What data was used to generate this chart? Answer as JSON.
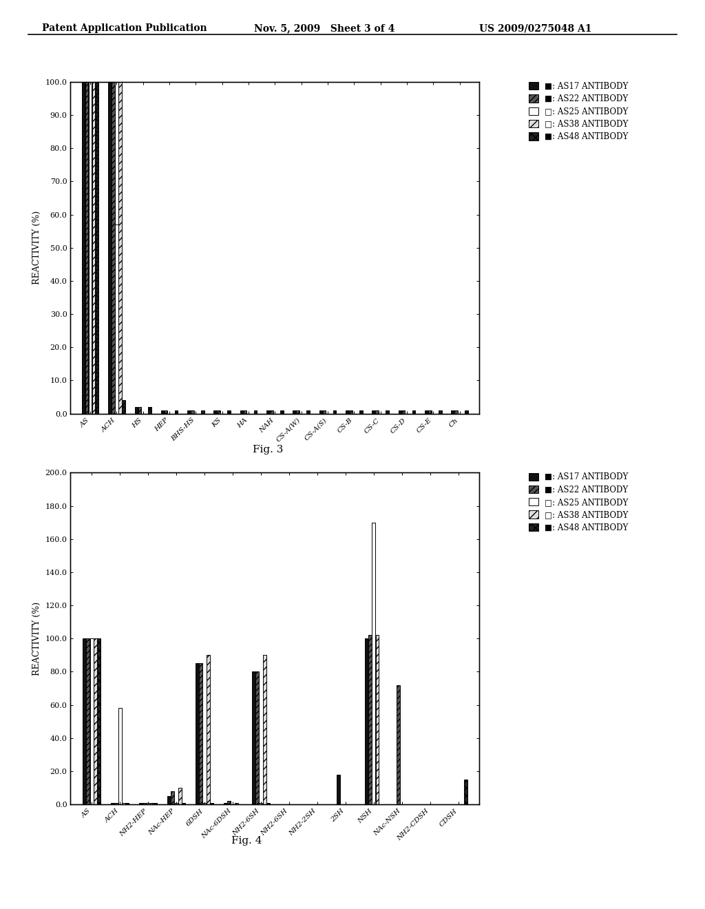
{
  "header_left": "Patent Application Publication",
  "header_mid": "Nov. 5, 2009   Sheet 3 of 4",
  "header_right": "US 2009/0275048 A1",
  "fig3": {
    "title": "Fig. 3",
    "ylabel": "REACTIVITY (%)",
    "ylim": [
      0,
      100
    ],
    "yticks": [
      0.0,
      10.0,
      20.0,
      30.0,
      40.0,
      50.0,
      60.0,
      70.0,
      80.0,
      90.0,
      100.0
    ],
    "categories": [
      "AS",
      "ACH",
      "HS",
      "HEP",
      "BHS-HS",
      "KS",
      "HA",
      "NAH",
      "CS-A(W)",
      "CS-A(S)",
      "CS-B",
      "CS-C",
      "CS-D",
      "CS-E",
      "Ch"
    ],
    "series": [
      {
        "name": "AS17 ANTIBODY",
        "color": "#111111",
        "hatch": "",
        "values": [
          100,
          100,
          2,
          1,
          1,
          1,
          1,
          1,
          1,
          1,
          1,
          1,
          1,
          1,
          1
        ]
      },
      {
        "name": "AS22 ANTIBODY",
        "color": "#555555",
        "hatch": "////",
        "values": [
          100,
          100,
          2,
          1,
          1,
          1,
          1,
          1,
          1,
          1,
          1,
          1,
          1,
          1,
          1
        ]
      },
      {
        "name": "AS25 ANTIBODY",
        "color": "#ffffff",
        "hatch": "",
        "values": [
          100,
          57,
          0,
          0,
          0,
          0,
          0,
          0,
          0,
          0,
          0,
          0,
          0,
          0,
          0
        ]
      },
      {
        "name": "AS38 ANTIBODY",
        "color": "#dddddd",
        "hatch": "///",
        "values": [
          100,
          100,
          0,
          0,
          0,
          0,
          0,
          0,
          0,
          0,
          0,
          0,
          0,
          0,
          0
        ]
      },
      {
        "name": "AS48 ANTIBODY",
        "color": "#222222",
        "hatch": "xxx",
        "values": [
          100,
          4,
          2,
          1,
          1,
          1,
          1,
          1,
          1,
          1,
          1,
          1,
          1,
          1,
          1
        ]
      }
    ]
  },
  "fig4": {
    "title": "Fig. 4",
    "ylabel": "REACTIVITY (%)",
    "ylim": [
      0,
      200
    ],
    "yticks": [
      0.0,
      20.0,
      40.0,
      60.0,
      80.0,
      100.0,
      120.0,
      140.0,
      160.0,
      180.0,
      200.0
    ],
    "categories": [
      "AS",
      "ACH",
      "NH2-HEP",
      "NAc-HEP",
      "6DSH",
      "NAc-6DSH",
      "NH2-6SH",
      "NH2-6SH",
      "NH2-2SH",
      "2SH",
      "NSH",
      "NAc-NSH",
      "NH2-CDSH",
      "CDSH"
    ],
    "series": [
      {
        "name": "AS17 ANTIBODY",
        "color": "#111111",
        "hatch": "",
        "values": [
          100,
          1,
          1,
          5,
          85,
          1,
          80,
          0,
          0,
          18,
          100,
          0,
          0,
          0
        ]
      },
      {
        "name": "AS22 ANTIBODY",
        "color": "#555555",
        "hatch": "////",
        "values": [
          100,
          1,
          1,
          8,
          85,
          2,
          80,
          0,
          0,
          0,
          102,
          72,
          0,
          0
        ]
      },
      {
        "name": "AS25 ANTIBODY",
        "color": "#ffffff",
        "hatch": "",
        "values": [
          100,
          58,
          1,
          1,
          1,
          0,
          1,
          0,
          0,
          0,
          170,
          0,
          0,
          0
        ]
      },
      {
        "name": "AS38 ANTIBODY",
        "color": "#dddddd",
        "hatch": "///",
        "values": [
          100,
          1,
          1,
          10,
          90,
          1,
          90,
          0,
          0,
          0,
          102,
          0,
          0,
          0
        ]
      },
      {
        "name": "AS48 ANTIBODY",
        "color": "#222222",
        "hatch": "xxx",
        "values": [
          100,
          1,
          1,
          1,
          1,
          0,
          1,
          0,
          0,
          0,
          0,
          0,
          0,
          15
        ]
      }
    ]
  },
  "legend_symbols": [
    {
      "label": "AS17 ANTIBODY",
      "color": "#111111",
      "hatch": ""
    },
    {
      "label": "AS22 ANTIBODY",
      "color": "#555555",
      "hatch": "////"
    },
    {
      "label": "AS25 ANTIBODY",
      "color": "#ffffff",
      "hatch": ""
    },
    {
      "label": "AS38 ANTIBODY",
      "color": "#dddddd",
      "hatch": "///"
    },
    {
      "label": "AS48 ANTIBODY",
      "color": "#222222",
      "hatch": "xxx"
    }
  ],
  "bar_edge_color": "#000000",
  "bar_linewidth": 0.7,
  "font_family": "DejaVu Serif"
}
